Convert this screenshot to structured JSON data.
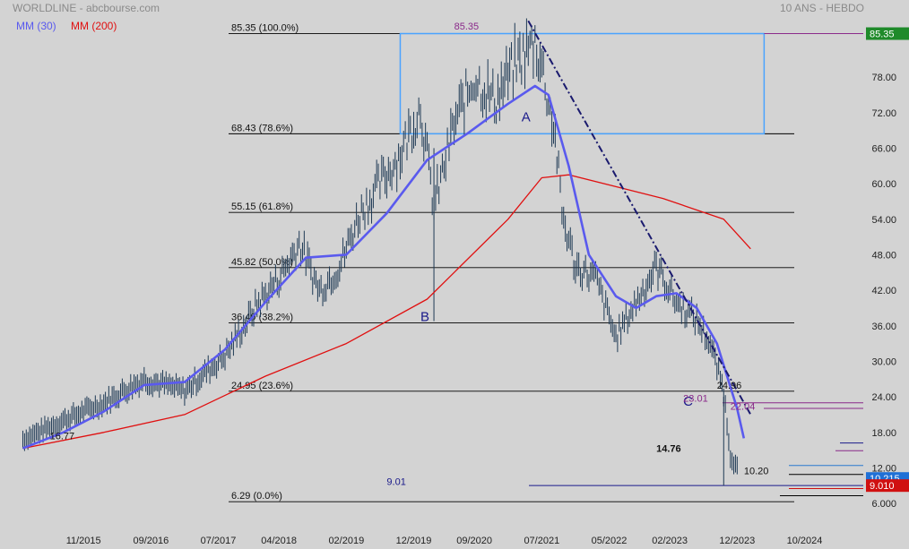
{
  "header": {
    "title": "WORLDLINE - abcbourse.com",
    "period": "10 ANS - HEBDO"
  },
  "legend": [
    {
      "label": "MM (30)",
      "color": "#5a5aee"
    },
    {
      "label": "MM (200)",
      "color": "#e01010"
    }
  ],
  "colors": {
    "background": "#d3d3d3",
    "price": "#1f3a55",
    "ma30": "#5a5aee",
    "ma200": "#e01010",
    "fib_line": "#000000",
    "box": "#4aa3ff",
    "trendline": "#1a1a6e",
    "last_price_badge": "#1f70d6",
    "top_badge": "#1f8a2a",
    "low_badge": "#d01010"
  },
  "chart_data": {
    "type": "line",
    "title": "WORLDLINE",
    "x_ticks": [
      "11/2015",
      "09/2016",
      "07/2017",
      "04/2018",
      "02/2019",
      "12/2019",
      "09/2020",
      "07/2021",
      "05/2022",
      "02/2023",
      "12/2023",
      "10/2024"
    ],
    "y_ticks": [
      6,
      12,
      18,
      24,
      30,
      36,
      42,
      48,
      54,
      60,
      66,
      72,
      78
    ],
    "y_tick_labels": [
      "6.000",
      "12.00",
      "18.00",
      "24.00",
      "30.00",
      "36.00",
      "42.00",
      "48.00",
      "54.00",
      "60.00",
      "66.00",
      "72.00",
      "78.00"
    ],
    "ylim": [
      4.5,
      88
    ],
    "xlim": [
      "2015-01",
      "2024-11"
    ],
    "series": [
      {
        "name": "",
        "role": "price",
        "x": [
          "2015-02",
          "2015-08",
          "2016-02",
          "2016-08",
          "2017-02",
          "2017-08",
          "2018-01",
          "2018-04",
          "2018-07",
          "2018-10",
          "2019-01",
          "2019-04",
          "2019-07",
          "2019-10",
          "2020-01",
          "2020-03",
          "2020-06",
          "2020-09",
          "2020-12",
          "2021-03",
          "2021-06",
          "2021-07",
          "2021-09",
          "2021-10",
          "2021-12",
          "2022-03",
          "2022-06",
          "2022-09",
          "2022-12",
          "2023-03",
          "2023-06",
          "2023-08",
          "2023-10",
          "2023-11",
          "2023-12"
        ],
        "values": [
          16.8,
          20,
          23,
          27,
          25,
          31,
          40,
          44,
          50,
          42,
          46,
          55,
          60,
          65,
          73,
          56,
          70,
          78,
          74,
          80,
          84,
          80,
          68,
          55,
          46,
          44,
          34,
          40,
          46,
          40,
          37,
          33,
          25,
          14,
          12
        ]
      },
      {
        "name": "MM (30)",
        "role": "ma30",
        "x": [
          "2015-02",
          "2015-08",
          "2016-02",
          "2016-08",
          "2017-02",
          "2017-08",
          "2018-02",
          "2018-08",
          "2019-02",
          "2019-08",
          "2020-02",
          "2020-08",
          "2021-02",
          "2021-06",
          "2021-08",
          "2021-11",
          "2022-02",
          "2022-06",
          "2022-09",
          "2022-12",
          "2023-03",
          "2023-06",
          "2023-09",
          "2023-12",
          "2024-01"
        ],
        "values": [
          15.3,
          18,
          21.5,
          26,
          26.5,
          32,
          40,
          47.5,
          48,
          55,
          64,
          68.5,
          73.5,
          76.5,
          75,
          63,
          48,
          41,
          39,
          41,
          41.5,
          39,
          33,
          22,
          17
        ]
      },
      {
        "name": "MM (200)",
        "role": "ma200",
        "x": [
          "2015-02",
          "2016-02",
          "2017-02",
          "2018-02",
          "2019-02",
          "2020-02",
          "2021-02",
          "2021-07",
          "2021-11",
          "2022-06",
          "2023-01",
          "2023-10",
          "2024-02"
        ],
        "values": [
          15.3,
          18,
          21,
          27.5,
          33,
          40.5,
          54,
          61,
          61.5,
          59.5,
          57.5,
          54,
          49
        ]
      }
    ],
    "fibonacci": [
      {
        "value": 85.35,
        "label": "85.35 (100.0%)"
      },
      {
        "value": 68.43,
        "label": "68.43 (78.6%)"
      },
      {
        "value": 55.15,
        "label": "55.15 (61.8%)"
      },
      {
        "value": 45.82,
        "label": "45.82 (50.0%)"
      },
      {
        "value": 36.49,
        "label": "36.49 (38.2%)"
      },
      {
        "value": 24.95,
        "label": "24.95 (23.6%)"
      },
      {
        "value": 6.29,
        "label": "6.29 (0.0%)"
      }
    ],
    "annotations": [
      {
        "text": "A",
        "x": "2021-04",
        "y": 70.5
      },
      {
        "text": "B",
        "x": "2020-01",
        "y": 36.8
      },
      {
        "text": "C",
        "x": "2023-04",
        "y": 22.5
      },
      {
        "text": "85.35",
        "x": "2020-06",
        "y": 86
      },
      {
        "text": "16.77",
        "x": "2015-06",
        "y": 16.8
      },
      {
        "text": "14.76",
        "x": "2022-12",
        "y": 14.7
      },
      {
        "text": "9.01",
        "x": "2019-08",
        "y": 9.1
      },
      {
        "text": "23.01",
        "x": "2023-04",
        "y": 23.2
      },
      {
        "text": "22.04",
        "x": "2023-11",
        "y": 21.8
      },
      {
        "text": "24.96",
        "x": "2023-09",
        "y": 25.4
      },
      {
        "text": "10.20",
        "x": "2024-01",
        "y": 10.9
      }
    ],
    "right_badges": [
      {
        "text": "85.35",
        "value": 85.35,
        "color": "#1f8a2a"
      },
      {
        "text": "10.215",
        "value": 10.215,
        "color": "#1f70d6"
      },
      {
        "text": "9.010",
        "value": 9.01,
        "color": "#d01010"
      }
    ],
    "box": {
      "x_start": "2019-10",
      "x_end": "2024-04",
      "y_low": 68.43,
      "y_high": 85.35
    },
    "trendline": {
      "x": [
        "2021-05",
        "2024-02"
      ],
      "y": [
        87.5,
        21
      ]
    },
    "grid": false
  }
}
